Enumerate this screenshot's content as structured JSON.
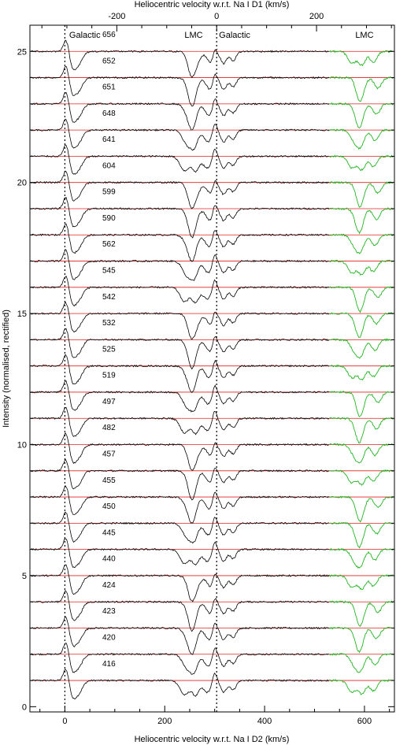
{
  "chart_data": {
    "type": "line",
    "top_axis": {
      "label": "Heliocentric velocity w.r.t. Na I D1 (km/s)",
      "tick_labels": [
        "-200",
        "0",
        "200"
      ]
    },
    "bottom_axis": {
      "label": "Heliocentric velocity w.r.t. Na I D2 (km/s)",
      "tick_labels": [
        "0",
        "200",
        "400",
        "600"
      ],
      "xlim": [
        -70,
        660
      ]
    },
    "left_axis": {
      "label": "Intensity (normalised, rectified)",
      "tick_labels": [
        "0",
        "5",
        "10",
        "15",
        "20",
        "25"
      ],
      "ylim": [
        -0.2,
        26
      ]
    },
    "region_labels": [
      "Galactic",
      "LMC",
      "Galactic",
      "LMC"
    ],
    "reference_velocities": [
      0,
      304
    ],
    "spectra": {
      "ids": [
        "416",
        "420",
        "423",
        "424",
        "440",
        "445",
        "450",
        "455",
        "457",
        "482",
        "497",
        "519",
        "525",
        "532",
        "542",
        "545",
        "562",
        "590",
        "599",
        "604",
        "641",
        "648",
        "651",
        "652",
        "656"
      ],
      "continuum_levels": [
        1,
        2,
        3,
        4,
        5,
        6,
        7,
        8,
        9,
        10,
        11,
        12,
        13,
        14,
        15,
        16,
        17,
        18,
        19,
        20,
        21,
        22,
        23,
        24,
        25
      ],
      "series": [
        {
          "name": "Na I D2",
          "color": "#000000"
        },
        {
          "name": "Na I D1",
          "color": "#22b422"
        },
        {
          "name": "continuum",
          "color": "#e02020"
        }
      ]
    }
  }
}
